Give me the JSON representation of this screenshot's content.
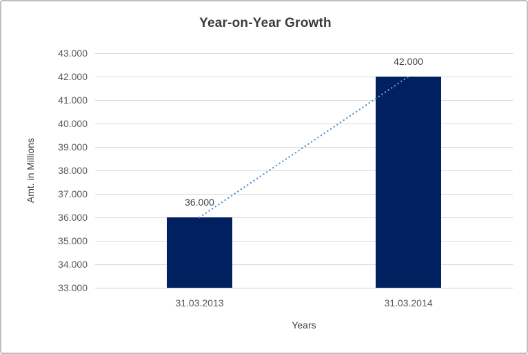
{
  "frame": {
    "background": "#ffffff",
    "border_color": "#bfbfbf"
  },
  "chart_data": {
    "type": "bar",
    "title": "Year-on-Year Growth",
    "xlabel": "Years",
    "ylabel": "Amt. in Millions",
    "categories": [
      "31.03.2013",
      "31.03.2014"
    ],
    "values": [
      36000,
      42000
    ],
    "data_labels": [
      "36.000",
      "42.000"
    ],
    "ylim": [
      33000,
      43000
    ],
    "ytick_step": 1000,
    "ytick_labels": [
      "33.000",
      "34.000",
      "35.000",
      "36.000",
      "37.000",
      "38.000",
      "39.000",
      "40.000",
      "41.000",
      "42.000",
      "43.000"
    ],
    "grid": true,
    "legend": "none",
    "trendline": {
      "type": "linear",
      "style": "dotted",
      "color": "#5b9bd5",
      "x": [
        0,
        1
      ],
      "y": [
        36000,
        42000
      ]
    },
    "colors": {
      "bar": "#002060",
      "gridline": "#d9d9d9",
      "axis_line": "#d0d0d0",
      "tick_label": "#595959",
      "data_label": "#404040",
      "title": "#3b3b3b",
      "axis_title": "#404040"
    }
  }
}
